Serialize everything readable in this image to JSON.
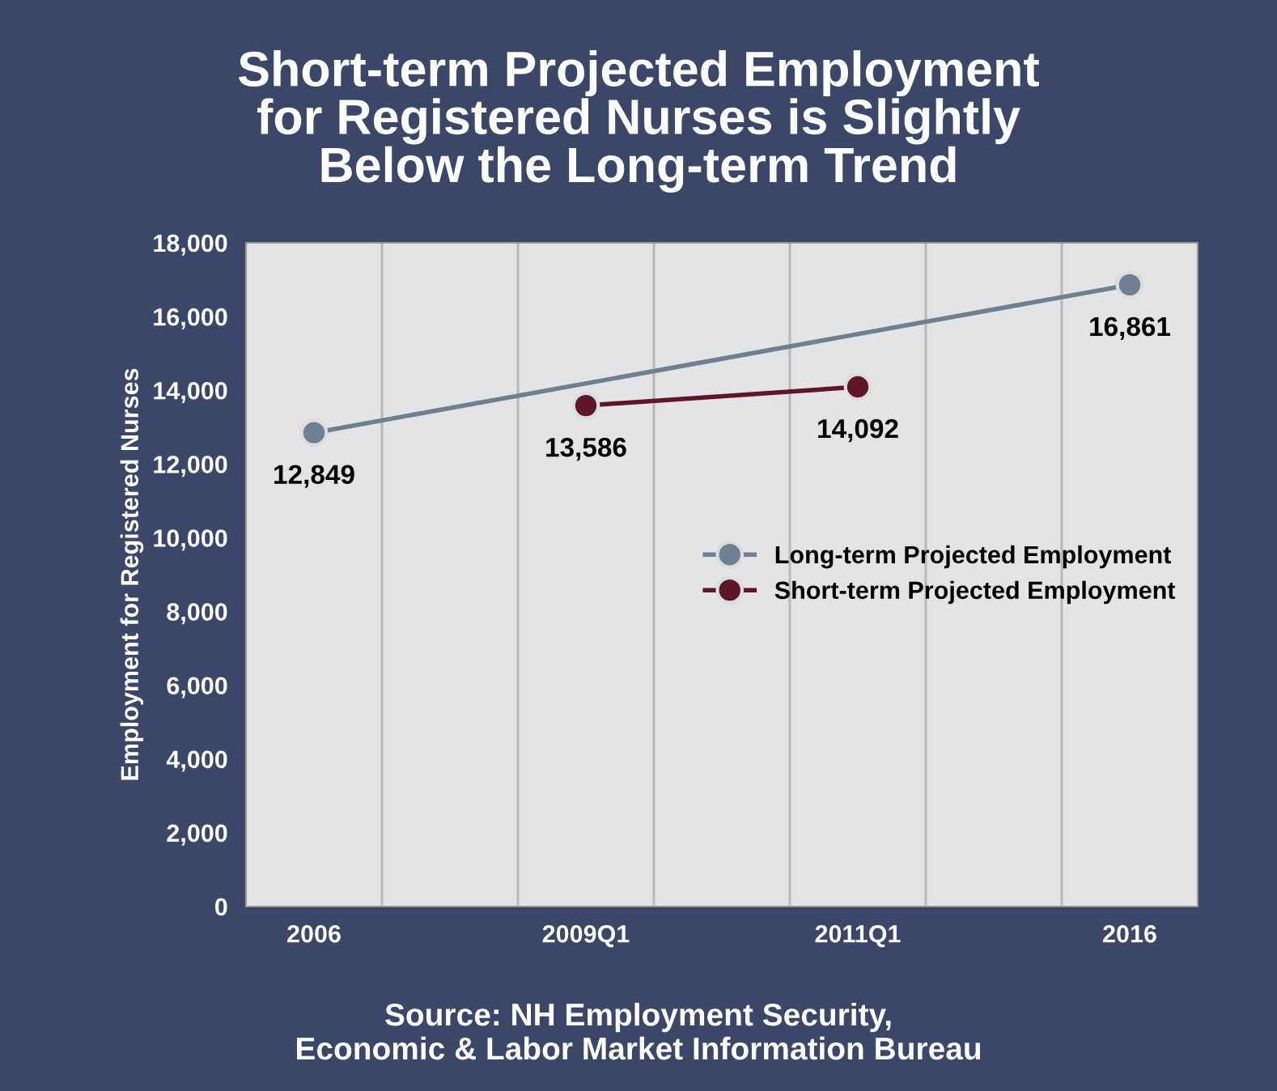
{
  "chart_data": {
    "type": "line",
    "title": "Short-term Projected Employment\nfor Registered Nurses is Slightly\nBelow the Long-term Trend",
    "ylabel": "Employment for Registered Nurses",
    "categories": [
      "2006",
      "2009Q1",
      "2011Q1",
      "2016"
    ],
    "series": [
      {
        "name": "Long-term Projected Employment",
        "color": "#6e8092",
        "values": [
          12849,
          null,
          null,
          16861
        ]
      },
      {
        "name": "Short-term Projected Employment",
        "color": "#5e1628",
        "values": [
          null,
          13586,
          14092,
          null
        ]
      }
    ],
    "ylim": [
      0,
      18000
    ],
    "yticks": [
      {
        "value": 0,
        "label": "0"
      },
      {
        "value": 2000,
        "label": "2,000"
      },
      {
        "value": 4000,
        "label": "4,000"
      },
      {
        "value": 6000,
        "label": "6,000"
      },
      {
        "value": 8000,
        "label": "8,000"
      },
      {
        "value": 10000,
        "label": "10,000"
      },
      {
        "value": 12000,
        "label": "12,000"
      },
      {
        "value": 14000,
        "label": "14,000"
      },
      {
        "value": 16000,
        "label": "16,000"
      },
      {
        "value": 18000,
        "label": "18,000"
      }
    ],
    "grid": "x",
    "legend": "right",
    "marker": "circle",
    "line_style": "solid",
    "value_labels": [
      [
        "12,849",
        null,
        null,
        "16,861"
      ],
      [
        null,
        "13,586",
        "14,092",
        null
      ]
    ],
    "annotations": [
      "Source: NH Employment Security,\nEconomic & Labor Market Information Bureau"
    ]
  }
}
